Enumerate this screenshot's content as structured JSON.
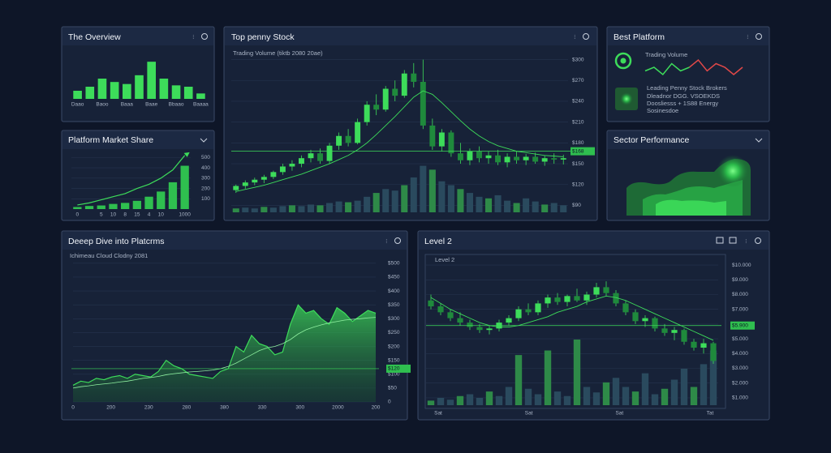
{
  "overview": {
    "title": "The Overview",
    "chart": {
      "type": "bar",
      "color": "#3ddc5a",
      "ylim": [
        0,
        60
      ],
      "categories": [
        "Daao",
        null,
        "Baoo",
        null,
        "Baaa",
        null,
        "Baae",
        null,
        "Bbaao",
        null,
        "Baaaa"
      ],
      "values": [
        12,
        18,
        30,
        25,
        22,
        35,
        55,
        30,
        20,
        18,
        8
      ]
    }
  },
  "market_share": {
    "title": "Platform Market Share",
    "chart": {
      "type": "bar",
      "color": "#2fbf4f",
      "line_color": "#3ddc5a",
      "ylim": [
        0,
        550
      ],
      "yticks": [
        500,
        400,
        300,
        200,
        100
      ],
      "categories": [
        "0",
        null,
        "5",
        "10",
        "8",
        "15",
        "4",
        "10",
        null,
        "1000"
      ],
      "values": [
        20,
        30,
        35,
        50,
        60,
        80,
        120,
        170,
        260,
        420
      ],
      "trend": [
        40,
        60,
        90,
        120,
        150,
        200,
        240,
        300,
        380,
        520
      ]
    }
  },
  "top_penny": {
    "title": "Top penny Stock",
    "subtitle": "Trading Volume (tiktb 2080 20ae)",
    "chart": {
      "type": "candlestick",
      "ylim": [
        80,
        310
      ],
      "volume_ylim": [
        0,
        70
      ],
      "yticks": [
        {
          "value": 300,
          "label": "$300"
        },
        {
          "value": 270,
          "label": "$270"
        },
        {
          "value": 240,
          "label": "$240"
        },
        {
          "value": 210,
          "label": "$210"
        },
        {
          "value": 180,
          "label": "$180"
        },
        {
          "value": 150,
          "label": "$150"
        },
        {
          "value": 120,
          "label": "$120"
        },
        {
          "value": 90,
          "label": "$90"
        }
      ],
      "marker": {
        "value": 168,
        "label": "$168"
      },
      "ohlc": [
        [
          112,
          120,
          108,
          118
        ],
        [
          118,
          126,
          114,
          123
        ],
        [
          123,
          130,
          119,
          127
        ],
        [
          127,
          134,
          122,
          131
        ],
        [
          131,
          140,
          128,
          138
        ],
        [
          138,
          150,
          134,
          146
        ],
        [
          146,
          155,
          140,
          150
        ],
        [
          150,
          162,
          145,
          158
        ],
        [
          158,
          170,
          152,
          165
        ],
        [
          165,
          172,
          150,
          154
        ],
        [
          154,
          180,
          150,
          176
        ],
        [
          176,
          195,
          170,
          190
        ],
        [
          190,
          200,
          175,
          180
        ],
        [
          180,
          215,
          178,
          210
        ],
        [
          210,
          240,
          205,
          235
        ],
        [
          235,
          250,
          220,
          228
        ],
        [
          228,
          262,
          225,
          258
        ],
        [
          258,
          270,
          240,
          248
        ],
        [
          248,
          285,
          245,
          280
        ],
        [
          280,
          295,
          260,
          268
        ],
        [
          268,
          300,
          200,
          205
        ],
        [
          205,
          215,
          170,
          175
        ],
        [
          175,
          200,
          168,
          195
        ],
        [
          195,
          198,
          160,
          165
        ],
        [
          165,
          180,
          150,
          155
        ],
        [
          155,
          172,
          148,
          168
        ],
        [
          168,
          175,
          152,
          158
        ],
        [
          158,
          168,
          150,
          162
        ],
        [
          162,
          170,
          148,
          152
        ],
        [
          152,
          165,
          145,
          160
        ],
        [
          160,
          168,
          150,
          155
        ],
        [
          155,
          164,
          148,
          160
        ],
        [
          160,
          166,
          150,
          153
        ],
        [
          153,
          162,
          147,
          158
        ],
        [
          158,
          165,
          150,
          156
        ],
        [
          156,
          163,
          149,
          158
        ]
      ],
      "ma": [
        110,
        113,
        116,
        119,
        123,
        127,
        131,
        135,
        140,
        145,
        150,
        156,
        162,
        170,
        180,
        192,
        205,
        218,
        232,
        246,
        255,
        250,
        238,
        225,
        212,
        200,
        190,
        182,
        176,
        172,
        168,
        166,
        164,
        162,
        161,
        160
      ],
      "volume": [
        5,
        6,
        5,
        7,
        6,
        8,
        9,
        8,
        10,
        9,
        12,
        14,
        13,
        15,
        20,
        25,
        30,
        28,
        35,
        45,
        60,
        55,
        40,
        35,
        30,
        25,
        20,
        18,
        22,
        15,
        12,
        18,
        14,
        10,
        12,
        9
      ]
    }
  },
  "best_platform": {
    "title": "Best Platform",
    "label": "Trading Volume",
    "sparkline": {
      "type": "line",
      "series": [
        {
          "color": "#3ddc5a",
          "values": [
            5,
            6,
            4,
            7,
            5,
            6,
            null,
            null,
            null,
            null,
            null,
            null
          ]
        },
        {
          "color": "#e04848",
          "values": [
            null,
            null,
            null,
            null,
            null,
            6,
            8,
            5,
            7,
            6,
            4,
            6
          ]
        }
      ]
    },
    "heading": "Leading Penny Stock Brokers",
    "lines": [
      "Dleadnor DGG. VSOEKDS",
      "Doosliesss + 1S88 Energy",
      "Sosinesdoe"
    ]
  },
  "sector": {
    "title": "Sector Performance"
  },
  "deep_dive": {
    "title": "Deeep Dive into Platcrms",
    "subtitle": "Ichimeau Cloud Clodny 2081",
    "chart": {
      "type": "area",
      "color": "#3ddc5a",
      "ylim": [
        0,
        520
      ],
      "yticks": [
        {
          "value": 500,
          "label": "$500"
        },
        {
          "value": 450,
          "label": "$450"
        },
        {
          "value": 400,
          "label": "$400"
        },
        {
          "value": 350,
          "label": "$350"
        },
        {
          "value": 300,
          "label": "$300"
        },
        {
          "value": 250,
          "label": "$250"
        },
        {
          "value": 200,
          "label": "$200"
        },
        {
          "value": 150,
          "label": "$150"
        },
        {
          "value": 100,
          "label": "$100"
        },
        {
          "value": 50,
          "label": "$50"
        },
        0
      ],
      "marker": {
        "value": 120,
        "label": "$120"
      },
      "x_labels": [
        "0",
        "200",
        "230",
        "280",
        "380",
        "330",
        "300",
        "2000",
        "200"
      ],
      "values": [
        60,
        75,
        70,
        85,
        80,
        90,
        95,
        85,
        100,
        95,
        90,
        110,
        150,
        130,
        120,
        100,
        95,
        90,
        85,
        110,
        120,
        200,
        180,
        240,
        210,
        200,
        170,
        180,
        280,
        350,
        320,
        330,
        300,
        280,
        340,
        320,
        290,
        310,
        330,
        320
      ],
      "trend": [
        50,
        55,
        58,
        62,
        65,
        68,
        72,
        75,
        80,
        85,
        88,
        92,
        98,
        102,
        105,
        108,
        110,
        112,
        115,
        120,
        128,
        140,
        155,
        170,
        185,
        195,
        200,
        210,
        225,
        245,
        260,
        270,
        278,
        285,
        290,
        295,
        298,
        300,
        303,
        305
      ]
    }
  },
  "level2": {
    "title": "Level 2",
    "inner_label": "Level 2",
    "chart": {
      "type": "candlestick",
      "ylim": [
        0.5,
        10.5
      ],
      "volume_ylim": [
        0,
        80
      ],
      "yticks": [
        {
          "value": 10,
          "label": "$10.000"
        },
        {
          "value": 9,
          "label": "$9.000"
        },
        {
          "value": 8,
          "label": "$8.000"
        },
        {
          "value": 7,
          "label": "$7.000"
        },
        {
          "value": 6,
          "label": "$6.000"
        },
        {
          "value": 5,
          "label": "$5.000"
        },
        {
          "value": 4,
          "label": "$4.000"
        },
        {
          "value": 3,
          "label": "$3.000"
        },
        {
          "value": 2,
          "label": "$2.000"
        },
        {
          "value": 1,
          "label": "$1.000"
        }
      ],
      "marker": {
        "value": 5.9,
        "label": "$5.900"
      },
      "x_labels": [
        "Sat",
        "Sat",
        "Sat",
        "Tat"
      ],
      "ohlc": [
        [
          7.6,
          8.0,
          7.0,
          7.2
        ],
        [
          7.2,
          7.4,
          6.6,
          6.8
        ],
        [
          6.8,
          7.0,
          6.2,
          6.4
        ],
        [
          6.4,
          6.8,
          5.9,
          6.1
        ],
        [
          6.1,
          6.3,
          5.6,
          5.8
        ],
        [
          5.8,
          6.0,
          5.4,
          5.6
        ],
        [
          5.6,
          5.9,
          5.3,
          5.7
        ],
        [
          5.7,
          6.3,
          5.5,
          6.1
        ],
        [
          6.1,
          6.6,
          5.9,
          6.4
        ],
        [
          6.4,
          7.2,
          6.2,
          7.0
        ],
        [
          7.0,
          7.4,
          6.6,
          6.8
        ],
        [
          6.8,
          7.6,
          6.6,
          7.4
        ],
        [
          7.4,
          8.0,
          7.1,
          7.8
        ],
        [
          7.8,
          8.1,
          7.3,
          7.5
        ],
        [
          7.5,
          8.0,
          7.2,
          7.9
        ],
        [
          7.9,
          8.4,
          7.5,
          7.6
        ],
        [
          7.6,
          8.2,
          7.3,
          8.0
        ],
        [
          8.0,
          8.8,
          7.8,
          8.5
        ],
        [
          8.5,
          8.9,
          7.9,
          8.1
        ],
        [
          8.1,
          8.3,
          7.2,
          7.4
        ],
        [
          7.4,
          7.6,
          6.6,
          6.8
        ],
        [
          6.8,
          7.0,
          6.0,
          6.2
        ],
        [
          6.2,
          6.6,
          5.8,
          6.4
        ],
        [
          6.4,
          6.5,
          5.5,
          5.7
        ],
        [
          5.7,
          6.0,
          5.2,
          5.4
        ],
        [
          5.4,
          5.8,
          4.9,
          5.6
        ],
        [
          5.6,
          5.7,
          4.6,
          4.8
        ],
        [
          4.8,
          5.0,
          4.2,
          4.4
        ],
        [
          4.4,
          5.0,
          4.0,
          4.7
        ],
        [
          4.7,
          4.8,
          3.3,
          3.5
        ]
      ],
      "ma": [
        7.8,
        7.4,
        7.0,
        6.7,
        6.4,
        6.1,
        5.9,
        5.8,
        5.8,
        5.9,
        6.1,
        6.3,
        6.5,
        6.8,
        7.0,
        7.2,
        7.5,
        7.7,
        7.9,
        7.8,
        7.6,
        7.3,
        7.0,
        6.7,
        6.4,
        6.1,
        5.8,
        5.5,
        5.2,
        4.9
      ],
      "volume": [
        5,
        8,
        6,
        10,
        12,
        8,
        15,
        10,
        20,
        55,
        18,
        12,
        60,
        15,
        10,
        72,
        20,
        14,
        25,
        30,
        20,
        15,
        35,
        12,
        18,
        28,
        40,
        20,
        45,
        60
      ]
    }
  }
}
